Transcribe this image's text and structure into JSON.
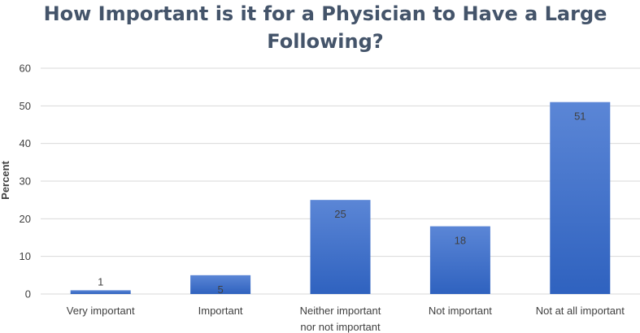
{
  "chart_data": {
    "type": "bar",
    "title_lines": [
      "How Important is it for a Physician to Have a Large",
      "Following?"
    ],
    "ylabel": "Percent",
    "xlabel": "",
    "ylim": [
      0,
      60
    ],
    "yticks": [
      0,
      10,
      20,
      30,
      40,
      50,
      60
    ],
    "categories": [
      [
        "Very important"
      ],
      [
        "Important"
      ],
      [
        "Neither important",
        "nor not important"
      ],
      [
        "Not important"
      ],
      [
        "Not at all important"
      ]
    ],
    "values": [
      1,
      5,
      25,
      18,
      51
    ],
    "data_labels": [
      "1",
      "5",
      "25",
      "18",
      "51"
    ],
    "grid": true,
    "legend": "none",
    "colors": {
      "bar_top": "#5b86d6",
      "bar_bottom": "#2f62bf",
      "grid": "#d9d9d9",
      "tick_text": "#404040",
      "label_text": "#404040",
      "title": "#44546a"
    }
  }
}
